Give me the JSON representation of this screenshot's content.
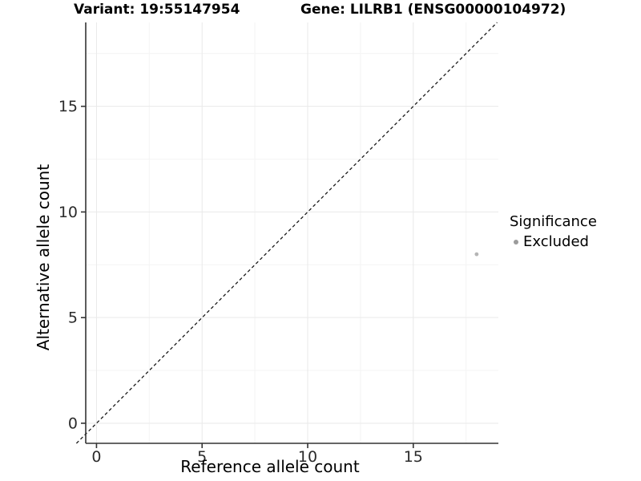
{
  "figure": {
    "title_left": "Variant: 19:55147954",
    "title_right": "Gene: LILRB1 (ENSG00000104972)"
  },
  "chart_data": {
    "type": "scatter",
    "title": "Variant: 19:55147954   Gene: LILRB1 (ENSG00000104972)",
    "xlabel": "Reference allele count",
    "ylabel": "Alternative allele count",
    "xlim": [
      -0.51,
      19.03
    ],
    "ylim": [
      -0.95,
      18.97
    ],
    "x_major_ticks": [
      0,
      5,
      10,
      15
    ],
    "y_major_ticks": [
      0,
      5,
      10,
      15
    ],
    "x_minor_ticks": [
      2.5,
      7.5,
      12.5,
      17.5
    ],
    "y_minor_ticks": [
      2.5,
      7.5,
      12.5,
      17.5
    ],
    "grid": "major and minor gridlines, very light gray, on white panel",
    "reference_line": {
      "kind": "identity",
      "slope": 1,
      "intercept": 0,
      "linetype": "dashed",
      "color": "#1a1a1a"
    },
    "series": [
      {
        "name": "Excluded",
        "color": "#b5b5b5",
        "points": [
          {
            "x": 18,
            "y": 8
          }
        ]
      }
    ],
    "legend": {
      "title": "Significance",
      "position": "right",
      "items": [
        {
          "label": "Excluded",
          "swatch_color": "#9b9b9b"
        }
      ]
    }
  },
  "style": {
    "axis_color": "#333333",
    "grid_major_color": "#e9e9e9",
    "grid_minor_color": "#f4f4f4",
    "background": "#ffffff"
  }
}
